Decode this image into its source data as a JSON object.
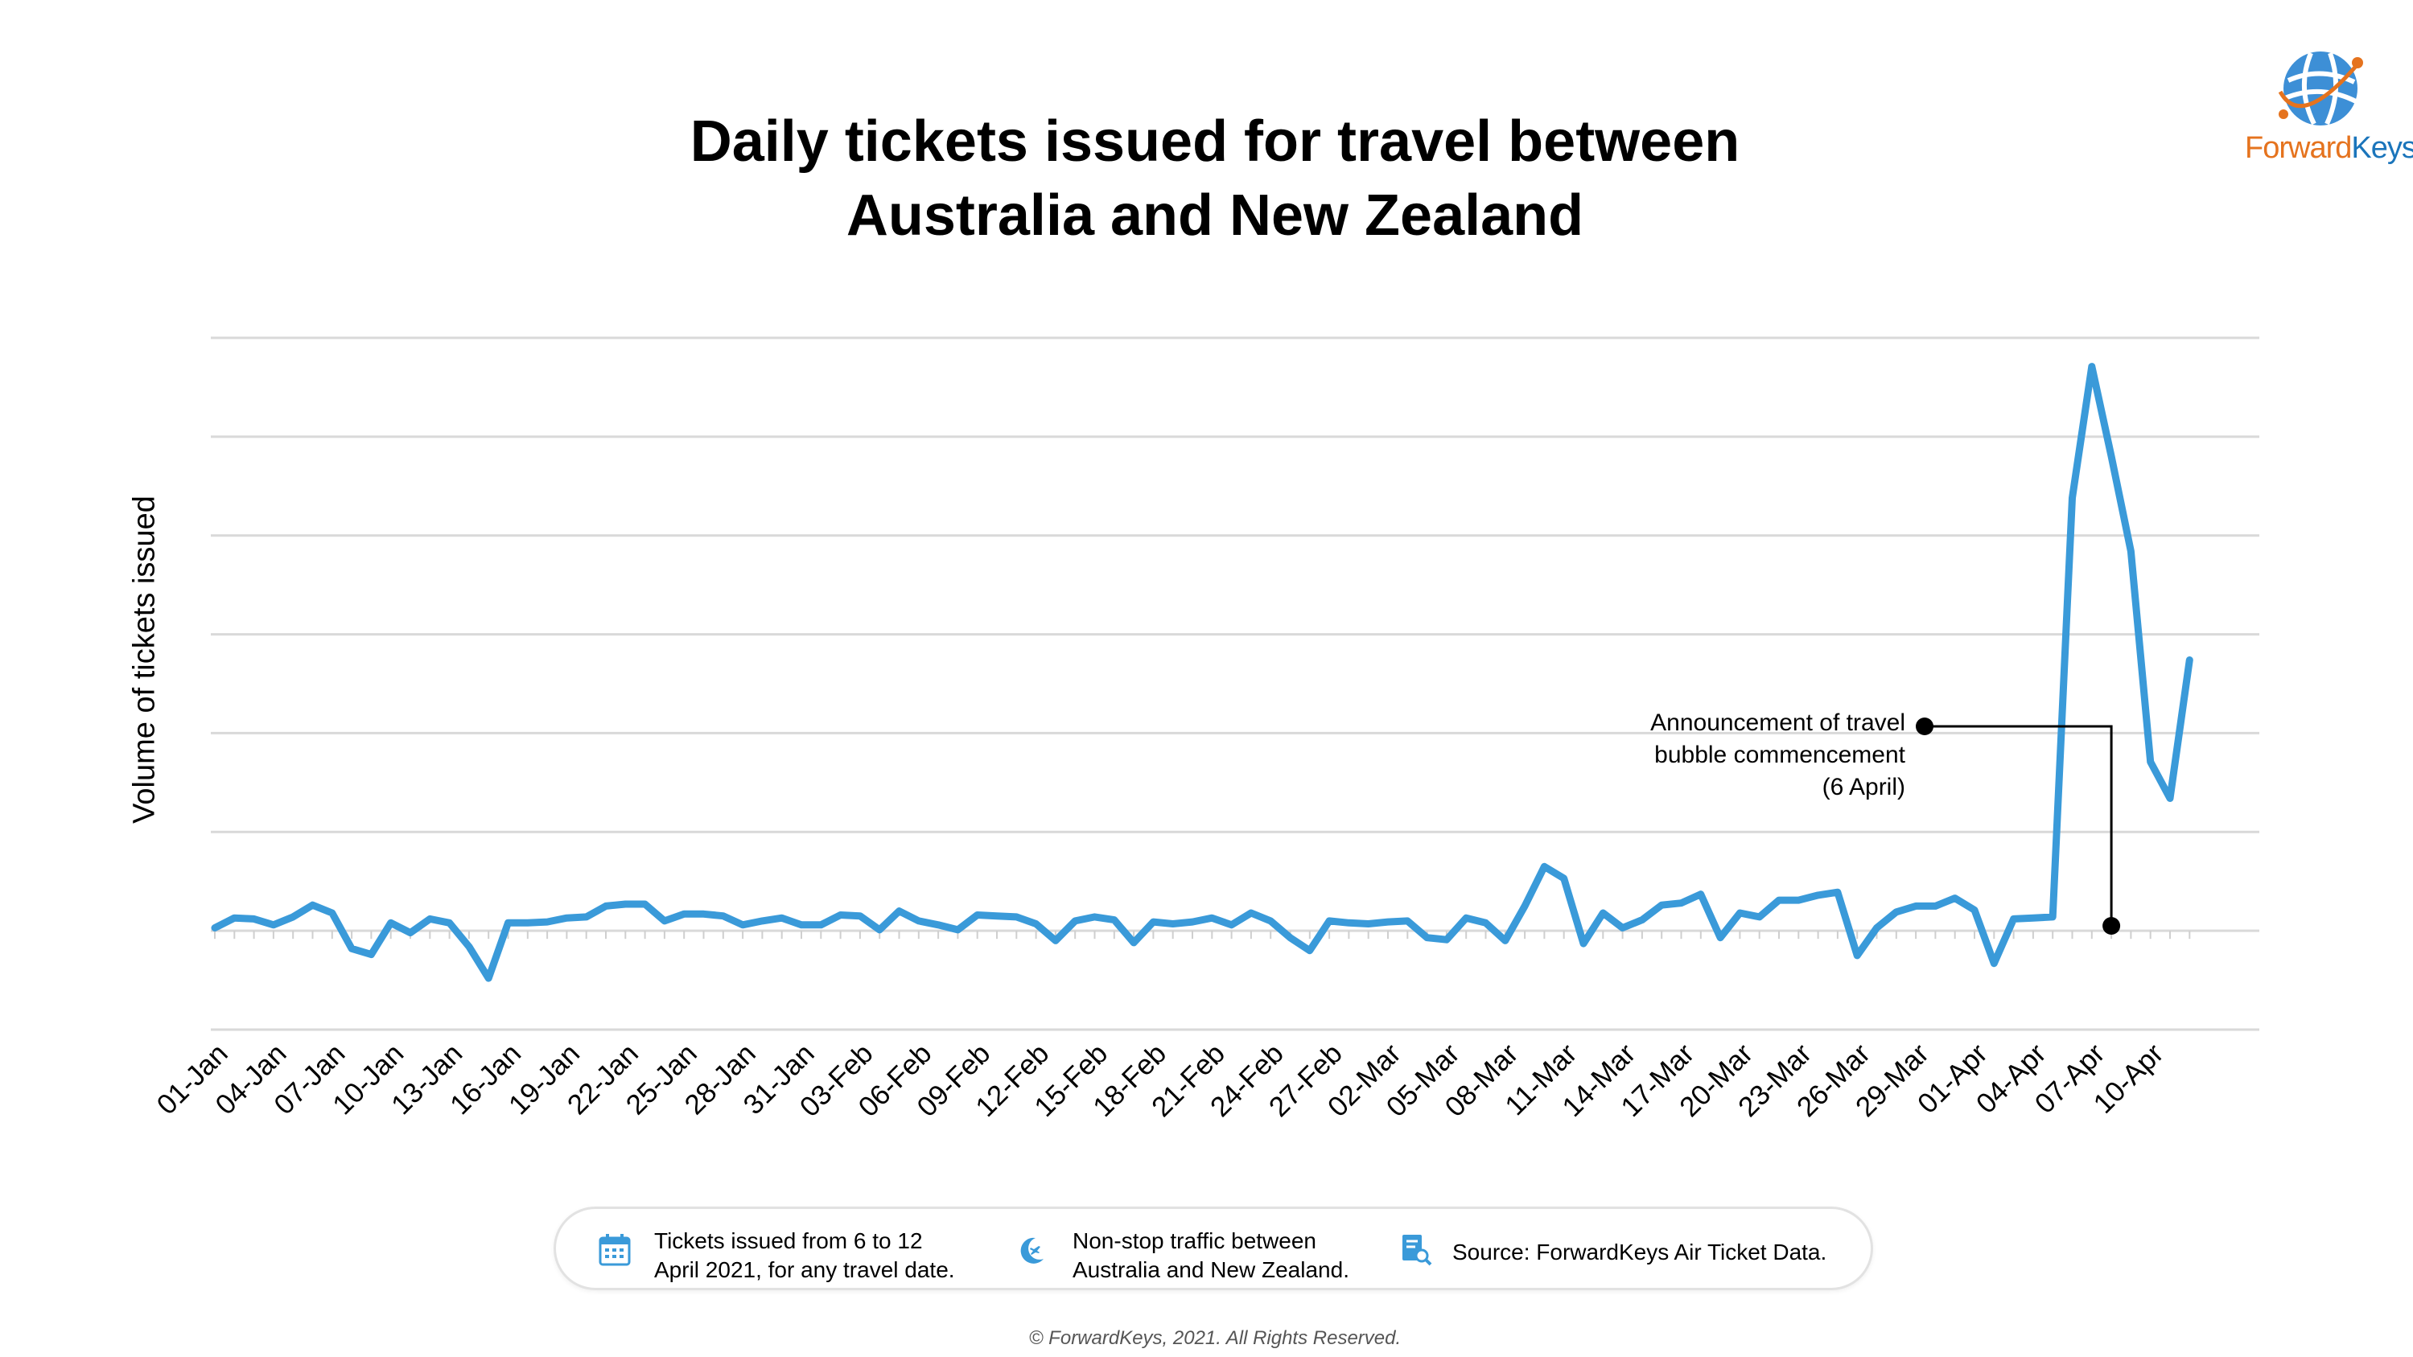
{
  "title_line1": "Daily tickets issued for travel between",
  "title_line2": "Australia and New Zealand",
  "logo": {
    "text_forward": "Forward",
    "text_keys": "Keys"
  },
  "legend": {
    "item1_line1": "Tickets issued from 6 to 12",
    "item1_line2": "April 2021, for any travel date.",
    "item2_line1": "Non-stop traffic between",
    "item2_line2": "Australia and New Zealand.",
    "item3": "Source: ForwardKeys Air Ticket Data."
  },
  "copyright": "© ForwardKeys, 2021. All Rights Reserved.",
  "colors": {
    "line": "#3a9ad9",
    "grid": "#d9d9d9",
    "logo_orange": "#e5731e",
    "logo_blue": "#1b75bb"
  },
  "chart_data": {
    "type": "line",
    "title": "Daily tickets issued for travel between Australia and New Zealand",
    "xlabel": "",
    "ylabel": "Volume of tickets issued",
    "ylim": [
      -1,
      6
    ],
    "grid": true,
    "x_start": "01-Jan",
    "tick_labels": [
      "01-Jan",
      "04-Jan",
      "07-Jan",
      "10-Jan",
      "13-Jan",
      "16-Jan",
      "19-Jan",
      "22-Jan",
      "25-Jan",
      "28-Jan",
      "31-Jan",
      "03-Feb",
      "06-Feb",
      "09-Feb",
      "12-Feb",
      "15-Feb",
      "18-Feb",
      "21-Feb",
      "24-Feb",
      "27-Feb",
      "02-Mar",
      "05-Mar",
      "08-Mar",
      "11-Mar",
      "14-Mar",
      "17-Mar",
      "20-Mar",
      "23-Mar",
      "26-Mar",
      "29-Mar",
      "01-Apr",
      "04-Apr",
      "07-Apr",
      "10-Apr"
    ],
    "values": [
      0.03,
      0.13,
      0.12,
      0.06,
      0.14,
      0.26,
      0.18,
      -0.18,
      -0.24,
      0.08,
      -0.02,
      0.12,
      0.08,
      -0.16,
      -0.48,
      0.08,
      0.08,
      0.09,
      0.13,
      0.14,
      0.25,
      0.27,
      0.27,
      0.1,
      0.17,
      0.17,
      0.15,
      0.06,
      0.1,
      0.13,
      0.06,
      0.06,
      0.16,
      0.15,
      0.01,
      0.2,
      0.1,
      0.06,
      0.01,
      0.16,
      0.15,
      0.14,
      0.07,
      -0.1,
      0.1,
      0.14,
      0.11,
      -0.12,
      0.09,
      0.07,
      0.09,
      0.13,
      0.06,
      0.18,
      0.1,
      -0.07,
      -0.2,
      0.1,
      0.08,
      0.07,
      0.09,
      0.1,
      -0.07,
      -0.09,
      0.13,
      0.08,
      -0.1,
      0.25,
      0.65,
      0.53,
      -0.13,
      0.18,
      0.03,
      0.11,
      0.26,
      0.28,
      0.37,
      -0.07,
      0.18,
      0.14,
      0.31,
      0.31,
      0.36,
      0.39,
      -0.25,
      0.03,
      0.19,
      0.25,
      0.25,
      0.33,
      0.21,
      -0.33,
      0.12,
      0.13,
      0.14,
      4.38,
      5.71,
      4.8,
      3.84,
      1.71,
      1.34,
      2.74
    ],
    "annotation": {
      "text_line1": "Announcement of travel",
      "text_line2": "bubble commencement",
      "text_line3": "(6 April)",
      "x_index": 97,
      "y": 0.05
    }
  }
}
